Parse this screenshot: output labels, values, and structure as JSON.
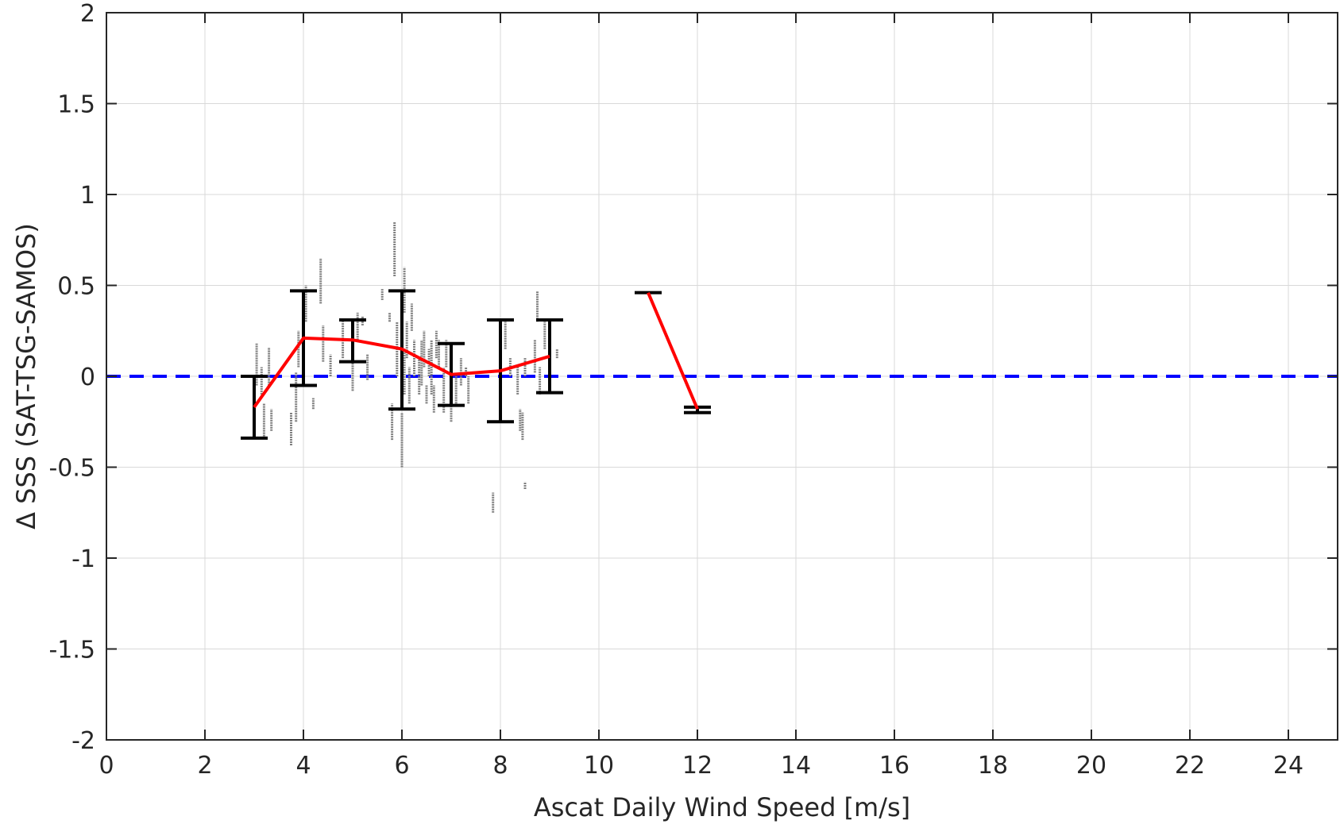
{
  "chart_data": {
    "type": "scatter",
    "title": "",
    "xlabel": "Ascat Daily Wind Speed [m/s]",
    "ylabel": "Δ SSS (SAT-TSG-SAMOS)",
    "xlim": [
      0,
      25
    ],
    "ylim": [
      -2,
      2
    ],
    "xticks": [
      0,
      2,
      4,
      6,
      8,
      10,
      12,
      14,
      16,
      18,
      20,
      22,
      24
    ],
    "xtick_labels": [
      "0",
      "2",
      "4",
      "6",
      "8",
      "10",
      "12",
      "14",
      "16",
      "18",
      "20",
      "22",
      "24"
    ],
    "yticks": [
      -2,
      -1.5,
      -1,
      -0.5,
      0,
      0.5,
      1,
      1.5,
      2
    ],
    "ytick_labels": [
      "-2",
      "-1.5",
      "-1",
      "-0.5",
      "0",
      "0.5",
      "1",
      "1.5",
      "2"
    ],
    "grid": true,
    "legend": "none",
    "colors": {
      "points": "#808080",
      "mean_line": "#ff0000",
      "error_bars": "#000000",
      "zero_line": "#0000ff",
      "grid": "#d9d9d9",
      "axes": "#262626"
    },
    "zero_reference": {
      "y": 0,
      "style": "dashed"
    },
    "mean_series": {
      "segments": [
        {
          "x": [
            3,
            4,
            5,
            6,
            7,
            8,
            9
          ],
          "y": [
            -0.17,
            0.21,
            0.2,
            0.15,
            0.01,
            0.03,
            0.11
          ]
        },
        {
          "x": [
            11,
            12
          ],
          "y": [
            0.46,
            -0.18
          ]
        }
      ]
    },
    "error_bars": [
      {
        "x": 3,
        "low": -0.34,
        "high": 0.0
      },
      {
        "x": 4,
        "low": -0.05,
        "high": 0.47
      },
      {
        "x": 5,
        "low": 0.08,
        "high": 0.31
      },
      {
        "x": 6,
        "low": -0.18,
        "high": 0.47
      },
      {
        "x": 7,
        "low": -0.16,
        "high": 0.18
      },
      {
        "x": 8,
        "low": -0.25,
        "high": 0.31
      },
      {
        "x": 9,
        "low": -0.09,
        "high": 0.31
      },
      {
        "x": 11,
        "low": 0.46,
        "high": 0.46
      },
      {
        "x": 12,
        "low": -0.2,
        "high": -0.17
      }
    ],
    "scatter_segments": [
      {
        "x": 3.05,
        "y1": -0.05,
        "y2": 0.18
      },
      {
        "x": 3.15,
        "y1": -0.1,
        "y2": 0.05
      },
      {
        "x": 3.2,
        "y1": -0.33,
        "y2": -0.15
      },
      {
        "x": 3.3,
        "y1": -0.05,
        "y2": 0.16
      },
      {
        "x": 3.35,
        "y1": -0.3,
        "y2": -0.18
      },
      {
        "x": 3.75,
        "y1": -0.38,
        "y2": -0.2
      },
      {
        "x": 3.85,
        "y1": -0.25,
        "y2": 0.02
      },
      {
        "x": 3.9,
        "y1": 0.05,
        "y2": 0.25
      },
      {
        "x": 4.05,
        "y1": 0.3,
        "y2": 0.5
      },
      {
        "x": 4.2,
        "y1": -0.18,
        "y2": -0.12
      },
      {
        "x": 4.35,
        "y1": 0.4,
        "y2": 0.65
      },
      {
        "x": 4.4,
        "y1": 0.08,
        "y2": 0.28
      },
      {
        "x": 4.55,
        "y1": 0.0,
        "y2": 0.12
      },
      {
        "x": 4.8,
        "y1": 0.1,
        "y2": 0.3
      },
      {
        "x": 5.0,
        "y1": -0.08,
        "y2": 0.1
      },
      {
        "x": 5.1,
        "y1": 0.2,
        "y2": 0.35
      },
      {
        "x": 5.2,
        "y1": 0.28,
        "y2": 0.33
      },
      {
        "x": 5.3,
        "y1": -0.02,
        "y2": 0.12
      },
      {
        "x": 5.6,
        "y1": 0.42,
        "y2": 0.48
      },
      {
        "x": 5.75,
        "y1": 0.3,
        "y2": 0.35
      },
      {
        "x": 5.8,
        "y1": -0.35,
        "y2": -0.15
      },
      {
        "x": 5.85,
        "y1": 0.55,
        "y2": 0.85
      },
      {
        "x": 5.9,
        "y1": 0.0,
        "y2": 0.3
      },
      {
        "x": 6.0,
        "y1": -0.5,
        "y2": -0.2
      },
      {
        "x": 6.05,
        "y1": 0.35,
        "y2": 0.6
      },
      {
        "x": 6.05,
        "y1": -0.1,
        "y2": 0.15
      },
      {
        "x": 6.1,
        "y1": 0.1,
        "y2": 0.3
      },
      {
        "x": 6.15,
        "y1": -0.15,
        "y2": 0.05
      },
      {
        "x": 6.2,
        "y1": 0.25,
        "y2": 0.4
      },
      {
        "x": 6.25,
        "y1": 0.0,
        "y2": 0.2
      },
      {
        "x": 6.35,
        "y1": -0.1,
        "y2": 0.1
      },
      {
        "x": 6.4,
        "y1": -0.05,
        "y2": 0.2
      },
      {
        "x": 6.45,
        "y1": 0.05,
        "y2": 0.25
      },
      {
        "x": 6.5,
        "y1": -0.15,
        "y2": -0.05
      },
      {
        "x": 6.55,
        "y1": 0.0,
        "y2": 0.15
      },
      {
        "x": 6.6,
        "y1": -0.1,
        "y2": 0.2
      },
      {
        "x": 6.65,
        "y1": -0.2,
        "y2": -0.05
      },
      {
        "x": 6.7,
        "y1": 0.1,
        "y2": 0.25
      },
      {
        "x": 6.75,
        "y1": 0.05,
        "y2": 0.2
      },
      {
        "x": 6.85,
        "y1": -0.2,
        "y2": 0.05
      },
      {
        "x": 6.9,
        "y1": 0.05,
        "y2": 0.2
      },
      {
        "x": 7.0,
        "y1": -0.25,
        "y2": -0.1
      },
      {
        "x": 7.1,
        "y1": -0.15,
        "y2": 0.0
      },
      {
        "x": 7.2,
        "y1": -0.05,
        "y2": 0.1
      },
      {
        "x": 7.3,
        "y1": 0.0,
        "y2": 0.05
      },
      {
        "x": 7.35,
        "y1": -0.15,
        "y2": 0.0
      },
      {
        "x": 7.85,
        "y1": -0.75,
        "y2": -0.64
      },
      {
        "x": 8.1,
        "y1": 0.15,
        "y2": 0.3
      },
      {
        "x": 8.2,
        "y1": 0.0,
        "y2": 0.1
      },
      {
        "x": 8.35,
        "y1": -0.1,
        "y2": 0.05
      },
      {
        "x": 8.4,
        "y1": -0.3,
        "y2": -0.18
      },
      {
        "x": 8.45,
        "y1": -0.35,
        "y2": -0.2
      },
      {
        "x": 8.5,
        "y1": -0.62,
        "y2": -0.58
      },
      {
        "x": 8.5,
        "y1": 0.0,
        "y2": 0.1
      },
      {
        "x": 8.7,
        "y1": 0.02,
        "y2": 0.2
      },
      {
        "x": 8.75,
        "y1": 0.3,
        "y2": 0.47
      },
      {
        "x": 8.8,
        "y1": -0.1,
        "y2": 0.05
      },
      {
        "x": 8.9,
        "y1": 0.15,
        "y2": 0.3
      },
      {
        "x": 9.15,
        "y1": 0.1,
        "y2": 0.15
      }
    ]
  }
}
